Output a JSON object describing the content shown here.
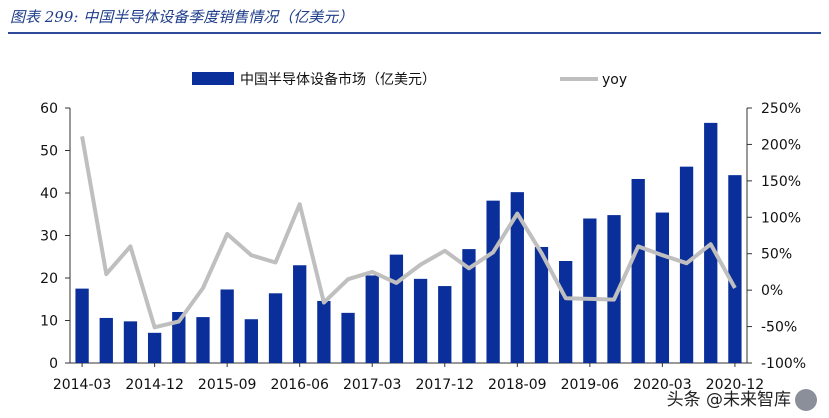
{
  "caption": "图表 299:  中国半导体设备季度销售情况（亿美元）",
  "watermark": "头条 @未来智库",
  "source": "",
  "chart_data": {
    "type": "bar",
    "title": "",
    "categories": [
      "2014-03",
      "2014-06",
      "2014-09",
      "2014-12",
      "2015-03",
      "2015-06",
      "2015-09",
      "2015-12",
      "2016-03",
      "2016-06",
      "2016-09",
      "2016-12",
      "2017-03",
      "2017-06",
      "2017-09",
      "2017-12",
      "2018-03",
      "2018-06",
      "2018-09",
      "2018-12",
      "2019-03",
      "2019-06",
      "2019-09",
      "2019-12",
      "2020-03",
      "2020-06",
      "2020-09",
      "2020-12"
    ],
    "xtick_labels": [
      "2014-03",
      "2014-12",
      "2015-09",
      "2016-06",
      "2017-03",
      "2017-12",
      "2018-09",
      "2019-06",
      "2020-03",
      "2020-12"
    ],
    "series": [
      {
        "name": "中国半导体设备市场（亿美元）",
        "type": "bar",
        "axis": "left",
        "color": "#0a2f9a",
        "values": [
          17.5,
          10.6,
          9.8,
          7.1,
          12.0,
          10.8,
          17.3,
          10.3,
          16.4,
          23.0,
          14.6,
          11.8,
          20.6,
          25.5,
          19.8,
          18.1,
          26.8,
          38.2,
          40.2,
          27.3,
          24.0,
          34.0,
          34.8,
          43.3,
          35.4,
          46.2,
          56.5,
          44.2
        ]
      },
      {
        "name": "yoy",
        "type": "line",
        "axis": "right",
        "color": "#bfbfbf",
        "values": [
          211,
          22,
          60,
          -51,
          -43,
          3,
          77,
          48,
          38,
          118,
          -17,
          15,
          25,
          10,
          35,
          54,
          30,
          52,
          105,
          51,
          -11,
          -12,
          -13,
          60,
          48,
          37,
          63,
          3
        ]
      }
    ],
    "y_left": {
      "min": 0,
      "max": 60,
      "step": 10,
      "ticks": [
        "0",
        "10",
        "20",
        "30",
        "40",
        "50",
        "60"
      ]
    },
    "y_right": {
      "min": -100,
      "max": 250,
      "step": 50,
      "ticks": [
        "-100%",
        "-50%",
        "0%",
        "50%",
        "100%",
        "150%",
        "200%",
        "250%"
      ]
    },
    "legend": "top",
    "grid": false
  }
}
